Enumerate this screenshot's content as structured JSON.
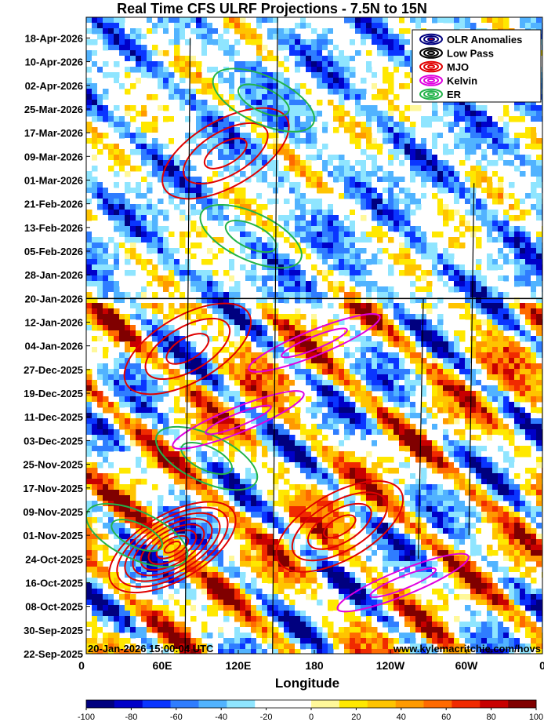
{
  "title": "Real Time CFS ULRF Projections - 7.5N to 15N",
  "timestamp": "20-Jan-2026 15:00:04 UTC",
  "website": "www.kylemacritchie.com/hovs",
  "chart_data": {
    "type": "heatmap",
    "title": "Real Time CFS ULRF Projections - 7.5N to 15N",
    "xlabel": "Longitude",
    "x_ticks": [
      "0",
      "60E",
      "120E",
      "180",
      "120W",
      "60W",
      "0"
    ],
    "x_tick_values": [
      0,
      60,
      120,
      180,
      240,
      300,
      360
    ],
    "xlim": [
      0,
      360
    ],
    "y_ticks": [
      "22-Sep-2025",
      "30-Sep-2025",
      "08-Oct-2025",
      "16-Oct-2025",
      "24-Oct-2025",
      "01-Nov-2025",
      "09-Nov-2025",
      "17-Nov-2025",
      "25-Nov-2025",
      "03-Dec-2025",
      "11-Dec-2025",
      "19-Dec-2025",
      "27-Dec-2025",
      "04-Jan-2026",
      "12-Jan-2026",
      "20-Jan-2026",
      "28-Jan-2026",
      "05-Feb-2026",
      "13-Feb-2026",
      "21-Feb-2026",
      "01-Mar-2026",
      "09-Mar-2026",
      "17-Mar-2026",
      "25-Mar-2026",
      "02-Apr-2026",
      "10-Apr-2026",
      "18-Apr-2026"
    ],
    "ylim": [
      "22-Sep-2025",
      "25-Apr-2026"
    ],
    "current_date": "20-Jan-2026",
    "legend_position": "top-right",
    "legend": [
      {
        "name": "OLR Anomalies",
        "color": "#000080"
      },
      {
        "name": "Low Pass",
        "color": "#000000"
      },
      {
        "name": "MJO",
        "color": "#e00000"
      },
      {
        "name": "Kelvin",
        "color": "#e000e0"
      },
      {
        "name": "ER",
        "color": "#22b34a"
      }
    ],
    "colorbar": {
      "ticks": [
        -100,
        -80,
        -60,
        -40,
        -20,
        0,
        20,
        40,
        60,
        80,
        100
      ],
      "colors": [
        "#00007f",
        "#0000c8",
        "#0a35ff",
        "#2f7dff",
        "#51b3ff",
        "#8fe5ff",
        "#ffffff",
        "#ffffff",
        "#fff89a",
        "#ffe800",
        "#ffc400",
        "#ff9a00",
        "#ff6a00",
        "#f02a00",
        "#c80000",
        "#800000"
      ]
    },
    "mjo_events": [
      {
        "lon": 68,
        "date": "28-Oct-2025",
        "amp": 8
      },
      {
        "lon": 200,
        "date": "04-Nov-2025",
        "amp": 4
      },
      {
        "lon": 80,
        "date": "03-Jan-2026",
        "amp": 3
      },
      {
        "lon": 110,
        "date": "10-Mar-2026",
        "amp": 3
      }
    ],
    "er_events": [
      {
        "lon": 40,
        "date": "01-Nov-2025"
      },
      {
        "lon": 95,
        "date": "27-Nov-2025"
      },
      {
        "lon": 130,
        "date": "10-Feb-2026"
      },
      {
        "lon": 140,
        "date": "28-Mar-2026"
      }
    ],
    "kelvin_events": [
      {
        "lon": 120,
        "date": "10-Dec-2025"
      },
      {
        "lon": 180,
        "date": "05-Jan-2026"
      },
      {
        "lon": 250,
        "date": "16-Oct-2025"
      }
    ]
  }
}
